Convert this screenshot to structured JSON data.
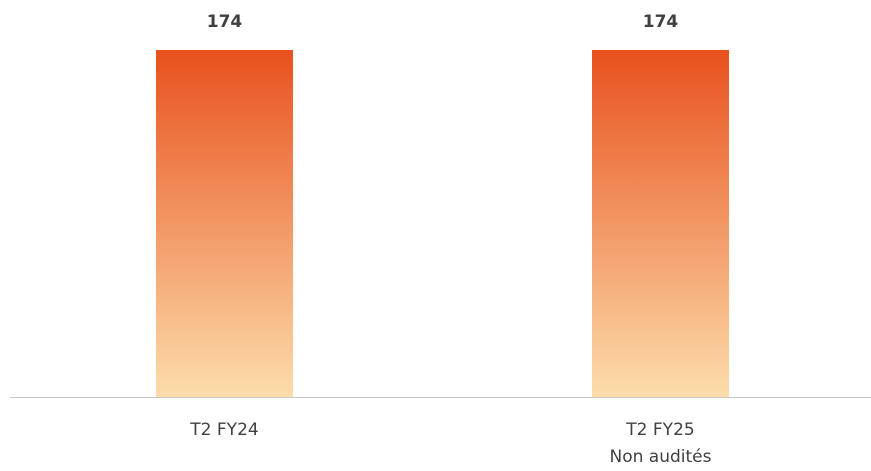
{
  "chart_data": {
    "type": "bar",
    "categories": [
      "T2 FY24",
      "T2 FY25\nNon audités"
    ],
    "values": [
      174,
      174
    ],
    "ylim": [
      0,
      174
    ],
    "gradient": [
      "#e8511d",
      "#fcddab"
    ]
  }
}
